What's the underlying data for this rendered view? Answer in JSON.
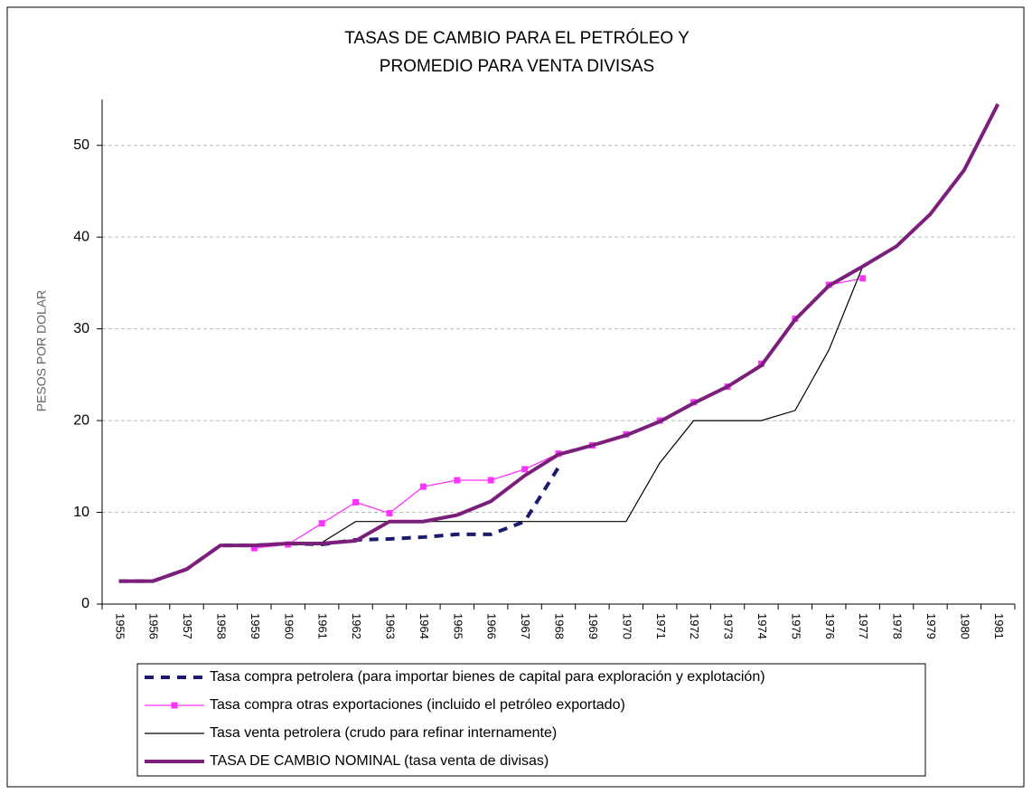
{
  "chart_data": {
    "type": "line",
    "title_lines": [
      "TASAS DE CAMBIO PARA EL PETRÓLEO Y",
      "PROMEDIO PARA VENTA DIVISAS"
    ],
    "y_label": "PESOS POR DOLAR",
    "categories": [
      "1955",
      "1956",
      "1957",
      "1958",
      "1959",
      "1960",
      "1961",
      "1962",
      "1963",
      "1964",
      "1965",
      "1966",
      "1967",
      "1968",
      "1969",
      "1970",
      "1971",
      "1972",
      "1973",
      "1974",
      "1975",
      "1976",
      "1977",
      "1978",
      "1979",
      "1980",
      "1981"
    ],
    "ylim": [
      0,
      55
    ],
    "yticks": [
      0,
      10,
      20,
      30,
      40,
      50
    ],
    "grid": true,
    "series": [
      {
        "name": "Tasa compra petrolera (para importar bienes de capital para exploración y explotación)",
        "color": "#1a1a6e",
        "dash": true,
        "line_width": 4,
        "values": [
          2.5,
          2.5,
          3.8,
          6.4,
          6.4,
          6.6,
          6.5,
          7.0,
          7.1,
          7.3,
          7.6,
          7.6,
          9.0,
          14.9,
          null,
          null,
          null,
          null,
          null,
          null,
          null,
          null,
          null,
          null,
          null,
          null,
          null
        ]
      },
      {
        "name": "Tasa compra otras exportaciones (incluido el petróleo exportado)",
        "color": "#ff33ff",
        "marker": "square",
        "line_width": 1.3,
        "values": [
          null,
          null,
          null,
          null,
          6.1,
          6.5,
          8.8,
          11.1,
          9.9,
          12.8,
          13.5,
          13.5,
          14.7,
          16.4,
          17.3,
          18.5,
          20.0,
          22.0,
          23.7,
          26.2,
          31.1,
          34.8,
          35.5,
          null,
          null,
          null,
          null
        ]
      },
      {
        "name": "Tasa venta petrolera (crudo para refinar internamente)",
        "color": "#000000",
        "line_width": 1.2,
        "values": [
          2.5,
          2.5,
          3.8,
          6.4,
          6.4,
          6.6,
          6.7,
          9.0,
          9.0,
          9.0,
          9.0,
          9.0,
          9.0,
          9.0,
          9.0,
          9.0,
          15.4,
          20.0,
          20.0,
          20.0,
          21.1,
          27.7,
          36.8,
          null,
          null,
          null,
          null
        ]
      },
      {
        "name": "TASA DE CAMBIO NOMINAL (tasa venta de divisas)",
        "color": "#7b1f7b",
        "line_width": 4,
        "values": [
          2.5,
          2.5,
          3.8,
          6.4,
          6.4,
          6.6,
          6.6,
          6.9,
          9.0,
          9.0,
          9.7,
          11.2,
          14.0,
          16.3,
          17.3,
          18.4,
          19.9,
          21.9,
          23.7,
          26.0,
          31.0,
          34.7,
          36.8,
          39.0,
          42.5,
          47.3,
          54.5
        ]
      }
    ]
  }
}
